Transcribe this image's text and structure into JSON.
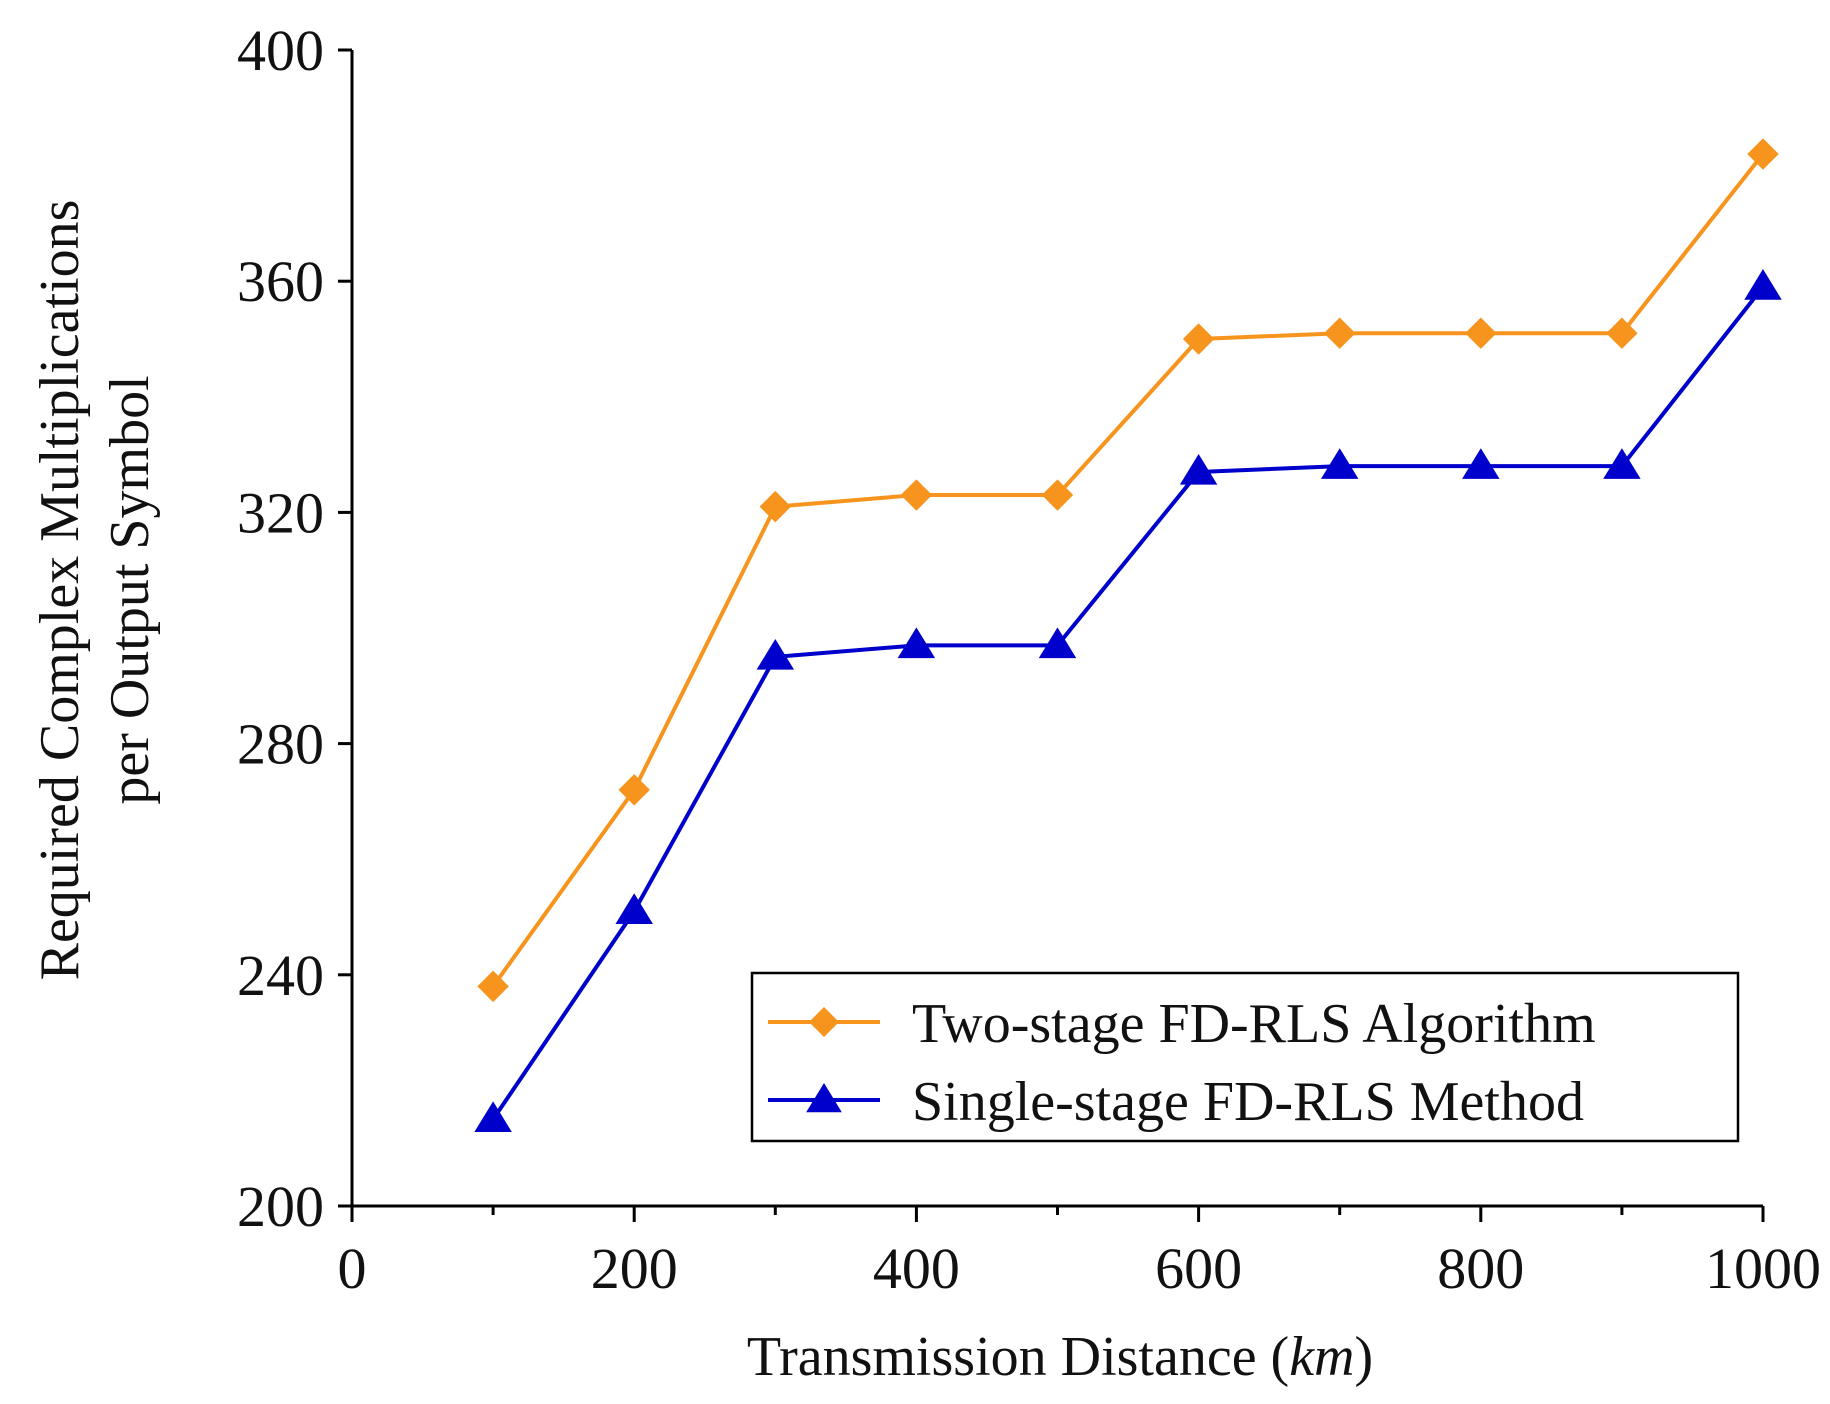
{
  "chart_data": {
    "type": "line",
    "title": "",
    "xlabel": "Transmission Distance",
    "xlabel_unit": "km",
    "xlabel_open": "(",
    "xlabel_close": ")",
    "ylabel_lines": [
      "Required Complex Multiplications",
      "per Output Symbol"
    ],
    "xlim": [
      0,
      1000
    ],
    "ylim": [
      200,
      400
    ],
    "xticks": [
      0,
      200,
      400,
      600,
      800,
      1000
    ],
    "yticks": [
      200,
      240,
      280,
      320,
      360,
      400
    ],
    "grid": false,
    "legend_position": "bottom-right",
    "x": [
      100,
      200,
      300,
      400,
      500,
      600,
      700,
      800,
      900,
      1000
    ],
    "series": [
      {
        "name": "Two-stage FD-RLS Algorithm",
        "color": "#F7941D",
        "marker": "diamond",
        "values": [
          238,
          272,
          321,
          323,
          323,
          350,
          351,
          351,
          351,
          382
        ]
      },
      {
        "name": "Single-stage FD-RLS Method",
        "color": "#0000CC",
        "marker": "triangle",
        "values": [
          215,
          251,
          295,
          297,
          297,
          327,
          328,
          328,
          328,
          359
        ]
      }
    ]
  }
}
